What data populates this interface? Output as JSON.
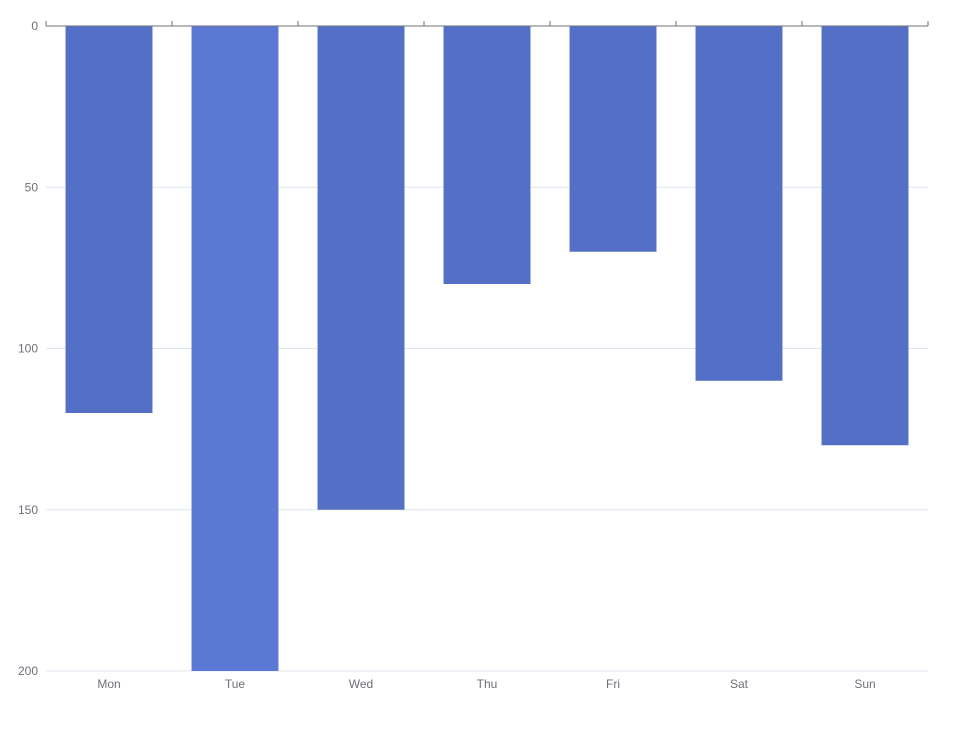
{
  "chart_data": {
    "type": "bar",
    "categories": [
      "Mon",
      "Tue",
      "Wed",
      "Thu",
      "Fri",
      "Sat",
      "Sun"
    ],
    "values": [
      120,
      200,
      150,
      80,
      70,
      110,
      130
    ],
    "y_inverse": true,
    "ylim": [
      0,
      200
    ],
    "yticks": [
      0,
      50,
      100,
      150,
      200
    ],
    "grid": true,
    "colors": {
      "bar": "#5470c6",
      "bar_highlight": "#5a78d4",
      "grid": "#e0e6f1",
      "axis": "#6e7079",
      "label": "#6e7079"
    },
    "highlighted_category": "Tue"
  }
}
